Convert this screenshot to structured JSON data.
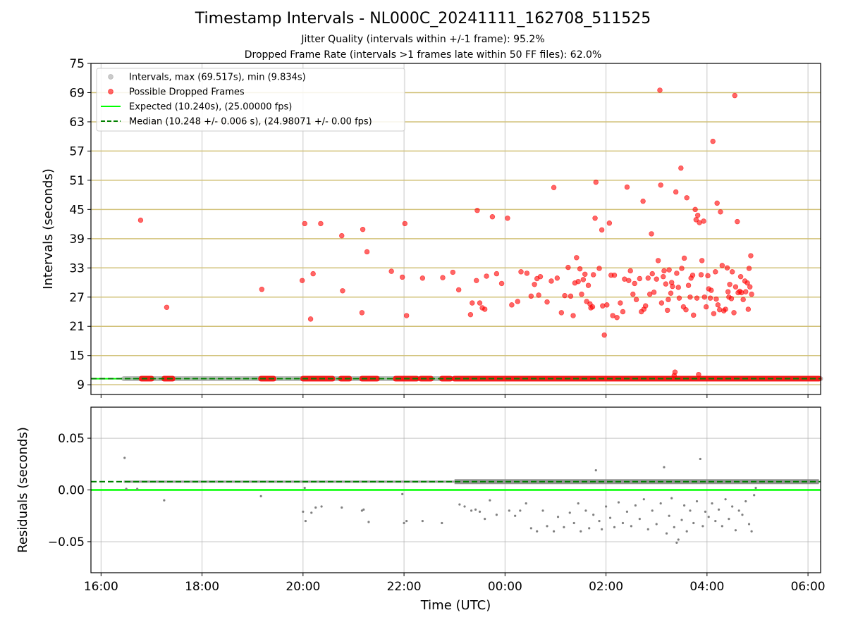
{
  "title": "Timestamp Intervals - NL000C_20241111_162708_511525",
  "subtitle_1": "Jitter Quality (intervals within +/-1 frame): 95.2%",
  "subtitle_2": "Dropped Frame Rate (intervals >1 frames late within 50 FF files): 62.0%",
  "colors": {
    "interval_points": "#a9a9a9",
    "dropped_points": "#ff0000",
    "expected_line": "#00ff00",
    "median_line": "#008000",
    "residual_points": "#808080",
    "horizontal_ref_lines": "#d2c27a",
    "grid": "#b0b0b0"
  },
  "chart_data": [
    {
      "type": "scatter",
      "ylabel": "Intervals (seconds)",
      "ylim": [
        7,
        75
      ],
      "xlim": [
        "15:48",
        "06:15"
      ],
      "yticks": [
        "9",
        "15",
        "21",
        "27",
        "33",
        "39",
        "45",
        "51",
        "57",
        "63",
        "69",
        "75"
      ],
      "grid": "vertical",
      "horizontal_reference_lines": [
        9,
        15,
        21,
        27,
        33,
        39,
        45,
        51,
        57,
        63,
        69
      ],
      "legend_position": "top-left",
      "legend": [
        {
          "label": "Intervals, max (69.517s), min (9.834s)",
          "kind": "marker",
          "color": "#a9a9a9"
        },
        {
          "label": "Possible Dropped Frames",
          "kind": "marker",
          "color": "#ff0000"
        },
        {
          "label": "Expected (10.240s), (25.00000 fps)",
          "kind": "line",
          "color": "#00ff00"
        },
        {
          "label": "Median (10.248 +/- 0.006 s), (24.98071 +/- 0.00 fps)",
          "kind": "dashed",
          "color": "#008000"
        }
      ],
      "expected": 10.24,
      "median": 10.248,
      "intervals_baseline": {
        "y": 10.248,
        "x_range": [
          "16:27",
          "06:15"
        ]
      },
      "dropped_baseline_segments": [
        [
          "16:48",
          "17:00"
        ],
        [
          "17:15",
          "17:25"
        ],
        [
          "19:10",
          "19:25"
        ],
        [
          "20:00",
          "20:35"
        ],
        [
          "20:45",
          "20:55"
        ],
        [
          "21:10",
          "21:28"
        ],
        [
          "21:50",
          "22:15"
        ],
        [
          "22:20",
          "22:32"
        ],
        [
          "22:45",
          "22:55"
        ],
        [
          "23:00",
          "06:13"
        ]
      ],
      "dropped_frames": [
        [
          "16:47",
          42.8
        ],
        [
          "17:18",
          24.9
        ],
        [
          "19:11",
          28.6
        ],
        [
          "19:59",
          30.4
        ],
        [
          "20:02",
          42.1
        ],
        [
          "20:09",
          22.5
        ],
        [
          "20:12",
          31.8
        ],
        [
          "20:21",
          42.1
        ],
        [
          "20:46",
          39.6
        ],
        [
          "20:47",
          28.3
        ],
        [
          "21:10",
          23.8
        ],
        [
          "21:11",
          40.9
        ],
        [
          "21:16",
          36.3
        ],
        [
          "21:45",
          32.3
        ],
        [
          "21:58",
          31.1
        ],
        [
          "22:01",
          42.1
        ],
        [
          "22:03",
          23.2
        ],
        [
          "22:22",
          30.9
        ],
        [
          "22:46",
          31.0
        ],
        [
          "22:58",
          32.1
        ],
        [
          "23:05",
          28.5
        ],
        [
          "23:19",
          23.4
        ],
        [
          "23:21",
          25.8
        ],
        [
          "23:26",
          30.4
        ],
        [
          "23:27",
          44.8
        ],
        [
          "23:30",
          25.8
        ],
        [
          "23:33",
          24.8
        ],
        [
          "23:36",
          24.5
        ],
        [
          "23:38",
          31.3
        ],
        [
          "23:45",
          43.5
        ],
        [
          "23:50",
          31.8
        ],
        [
          "23:56",
          29.8
        ],
        [
          "00:03",
          43.2
        ],
        [
          "00:08",
          25.4
        ],
        [
          "00:15",
          26.1
        ],
        [
          "00:19",
          32.2
        ],
        [
          "00:26",
          31.9
        ],
        [
          "00:31",
          27.2
        ],
        [
          "00:35",
          29.6
        ],
        [
          "00:38",
          30.8
        ],
        [
          "00:40",
          27.4
        ],
        [
          "00:42",
          31.2
        ],
        [
          "00:50",
          26.0
        ],
        [
          "00:55",
          30.3
        ],
        [
          "00:58",
          49.5
        ],
        [
          "01:02",
          30.9
        ],
        [
          "01:07",
          23.8
        ],
        [
          "01:11",
          27.3
        ],
        [
          "01:15",
          33.1
        ],
        [
          "01:18",
          27.2
        ],
        [
          "01:21",
          23.2
        ],
        [
          "01:23",
          29.9
        ],
        [
          "01:25",
          35.1
        ],
        [
          "01:27",
          30.2
        ],
        [
          "01:29",
          32.8
        ],
        [
          "01:31",
          27.6
        ],
        [
          "01:33",
          30.6
        ],
        [
          "01:35",
          31.7
        ],
        [
          "01:37",
          26.1
        ],
        [
          "01:39",
          29.4
        ],
        [
          "01:41",
          25.6
        ],
        [
          "01:42",
          24.8
        ],
        [
          "01:44",
          25.0
        ],
        [
          "01:45",
          31.6
        ],
        [
          "01:47",
          43.2
        ],
        [
          "01:48",
          50.6
        ],
        [
          "01:52",
          32.9
        ],
        [
          "01:55",
          40.8
        ],
        [
          "01:56",
          25.2
        ],
        [
          "01:58",
          19.2
        ],
        [
          "02:01",
          25.4
        ],
        [
          "02:04",
          42.2
        ],
        [
          "02:06",
          31.5
        ],
        [
          "02:08",
          23.2
        ],
        [
          "02:10",
          31.5
        ],
        [
          "02:13",
          22.8
        ],
        [
          "02:17",
          25.8
        ],
        [
          "02:20",
          24.0
        ],
        [
          "02:22",
          30.7
        ],
        [
          "02:25",
          49.6
        ],
        [
          "02:27",
          30.4
        ],
        [
          "02:29",
          32.4
        ],
        [
          "02:32",
          27.6
        ],
        [
          "02:34",
          29.8
        ],
        [
          "02:36",
          26.5
        ],
        [
          "02:40",
          30.8
        ],
        [
          "02:42",
          24.0
        ],
        [
          "02:44",
          46.7
        ],
        [
          "02:45",
          24.5
        ],
        [
          "02:47",
          25.2
        ],
        [
          "02:50",
          30.9
        ],
        [
          "02:52",
          27.6
        ],
        [
          "02:54",
          40.0
        ],
        [
          "02:55",
          31.8
        ],
        [
          "02:57",
          28.0
        ],
        [
          "03:00",
          30.7
        ],
        [
          "03:02",
          34.5
        ],
        [
          "03:04",
          69.5
        ],
        [
          "03:05",
          50.0
        ],
        [
          "03:06",
          25.8
        ],
        [
          "03:08",
          31.2
        ],
        [
          "03:09",
          32.4
        ],
        [
          "03:11",
          29.7
        ],
        [
          "03:13",
          24.3
        ],
        [
          "03:14",
          26.5
        ],
        [
          "03:15",
          32.6
        ],
        [
          "03:17",
          27.8
        ],
        [
          "03:18",
          30.0
        ],
        [
          "03:19",
          29.2
        ],
        [
          "03:21",
          10.9
        ],
        [
          "03:22",
          11.6
        ],
        [
          "03:23",
          48.6
        ],
        [
          "03:24",
          31.9
        ],
        [
          "03:26",
          29.0
        ],
        [
          "03:27",
          26.8
        ],
        [
          "03:29",
          53.5
        ],
        [
          "03:30",
          32.9
        ],
        [
          "03:32",
          25.0
        ],
        [
          "03:33",
          35.0
        ],
        [
          "03:35",
          24.4
        ],
        [
          "03:36",
          47.4
        ],
        [
          "03:38",
          29.4
        ],
        [
          "03:40",
          27.0
        ],
        [
          "03:41",
          30.9
        ],
        [
          "03:43",
          31.5
        ],
        [
          "03:44",
          23.3
        ],
        [
          "03:46",
          45.0
        ],
        [
          "03:47",
          42.9
        ],
        [
          "03:48",
          26.8
        ],
        [
          "03:49",
          43.8
        ],
        [
          "03:50",
          11.1
        ],
        [
          "03:51",
          42.3
        ],
        [
          "03:53",
          31.6
        ],
        [
          "03:54",
          34.5
        ],
        [
          "03:56",
          42.6
        ],
        [
          "03:57",
          27.0
        ],
        [
          "03:59",
          25.0
        ],
        [
          "04:01",
          31.4
        ],
        [
          "04:02",
          28.7
        ],
        [
          "04:04",
          26.8
        ],
        [
          "04:05",
          28.4
        ],
        [
          "04:07",
          59.0
        ],
        [
          "04:08",
          23.6
        ],
        [
          "04:10",
          32.2
        ],
        [
          "04:11",
          26.6
        ],
        [
          "04:12",
          46.3
        ],
        [
          "04:13",
          25.4
        ],
        [
          "04:15",
          24.4
        ],
        [
          "04:16",
          44.5
        ],
        [
          "04:18",
          33.5
        ],
        [
          "04:20",
          24.2
        ],
        [
          "04:22",
          24.5
        ],
        [
          "04:24",
          33.0
        ],
        [
          "04:25",
          28.1
        ],
        [
          "04:26",
          27.0
        ],
        [
          "04:27",
          29.6
        ],
        [
          "04:29",
          26.7
        ],
        [
          "04:30",
          32.2
        ],
        [
          "04:32",
          23.8
        ],
        [
          "04:33",
          68.4
        ],
        [
          "04:34",
          29.1
        ],
        [
          "04:36",
          42.5
        ],
        [
          "04:37",
          27.9
        ],
        [
          "04:39",
          28.2
        ],
        [
          "04:40",
          31.2
        ],
        [
          "04:41",
          27.9
        ],
        [
          "04:43",
          26.5
        ],
        [
          "04:45",
          30.3
        ],
        [
          "04:46",
          28.1
        ],
        [
          "04:48",
          29.9
        ],
        [
          "04:49",
          24.5
        ],
        [
          "04:50",
          32.9
        ],
        [
          "04:51",
          29.1
        ],
        [
          "04:52",
          35.5
        ],
        [
          "04:53",
          27.6
        ]
      ]
    },
    {
      "type": "scatter",
      "ylabel": "Residuals (seconds)",
      "xlabel": "Time (UTC)",
      "ylim": [
        -0.08,
        0.08
      ],
      "yticks": [
        "0.05",
        "0.00",
        "−0.05"
      ],
      "ytick_values": [
        0.05,
        0.0,
        -0.05
      ],
      "xticks": [
        "16:00",
        "18:00",
        "20:00",
        "22:00",
        "00:00",
        "02:00",
        "04:00",
        "06:00"
      ],
      "grid": "both",
      "expected_residual": 0.0,
      "median_residual": 0.008,
      "residual_band": {
        "y": 0.008,
        "x_range_sparse": [
          "16:27",
          "23:00"
        ],
        "x_range_dense": [
          "23:00",
          "06:13"
        ]
      },
      "outliers": [
        [
          "16:28",
          0.031
        ],
        [
          "16:30",
          0.001
        ],
        [
          "16:43",
          0.001
        ],
        [
          "17:15",
          -0.01
        ],
        [
          "19:10",
          -0.006
        ],
        [
          "20:00",
          -0.021
        ],
        [
          "20:03",
          -0.03
        ],
        [
          "20:02",
          0.002
        ],
        [
          "20:10",
          -0.022
        ],
        [
          "20:15",
          -0.017
        ],
        [
          "20:22",
          -0.016
        ],
        [
          "20:46",
          -0.017
        ],
        [
          "21:10",
          -0.02
        ],
        [
          "21:12",
          -0.019
        ],
        [
          "21:18",
          -0.031
        ],
        [
          "21:58",
          -0.004
        ],
        [
          "22:00",
          -0.032
        ],
        [
          "22:03",
          -0.03
        ],
        [
          "22:22",
          -0.03
        ],
        [
          "22:45",
          -0.032
        ],
        [
          "23:06",
          -0.014
        ],
        [
          "23:12",
          -0.016
        ],
        [
          "23:20",
          -0.02
        ],
        [
          "23:25",
          -0.019
        ],
        [
          "23:30",
          -0.021
        ],
        [
          "23:36",
          -0.028
        ],
        [
          "23:42",
          -0.01
        ],
        [
          "23:50",
          -0.024
        ],
        [
          "00:05",
          -0.02
        ],
        [
          "00:12",
          -0.025
        ],
        [
          "00:18",
          -0.02
        ],
        [
          "00:25",
          -0.013
        ],
        [
          "00:31",
          -0.037
        ],
        [
          "00:38",
          -0.04
        ],
        [
          "00:45",
          -0.02
        ],
        [
          "00:50",
          -0.035
        ],
        [
          "00:58",
          -0.04
        ],
        [
          "01:03",
          -0.026
        ],
        [
          "01:10",
          -0.036
        ],
        [
          "01:17",
          -0.022
        ],
        [
          "01:22",
          -0.032
        ],
        [
          "01:27",
          -0.013
        ],
        [
          "01:30",
          -0.04
        ],
        [
          "01:36",
          -0.02
        ],
        [
          "01:40",
          -0.037
        ],
        [
          "01:45",
          -0.024
        ],
        [
          "01:48",
          0.019
        ],
        [
          "01:52",
          -0.03
        ],
        [
          "01:55",
          -0.038
        ],
        [
          "02:00",
          -0.016
        ],
        [
          "02:05",
          -0.027
        ],
        [
          "02:10",
          -0.036
        ],
        [
          "02:15",
          -0.012
        ],
        [
          "02:20",
          -0.032
        ],
        [
          "02:25",
          -0.021
        ],
        [
          "02:30",
          -0.035
        ],
        [
          "02:35",
          -0.015
        ],
        [
          "02:40",
          -0.028
        ],
        [
          "02:45",
          -0.009
        ],
        [
          "02:50",
          -0.038
        ],
        [
          "02:55",
          -0.02
        ],
        [
          "03:00",
          -0.033
        ],
        [
          "03:05",
          -0.013
        ],
        [
          "03:09",
          0.022
        ],
        [
          "03:12",
          -0.042
        ],
        [
          "03:15",
          -0.025
        ],
        [
          "03:18",
          -0.008
        ],
        [
          "03:21",
          -0.036
        ],
        [
          "03:24",
          -0.051
        ],
        [
          "03:26",
          -0.048
        ],
        [
          "03:30",
          -0.029
        ],
        [
          "03:33",
          -0.015
        ],
        [
          "03:36",
          -0.04
        ],
        [
          "03:40",
          -0.02
        ],
        [
          "03:44",
          -0.032
        ],
        [
          "03:48",
          -0.011
        ],
        [
          "03:52",
          0.03
        ],
        [
          "03:55",
          -0.035
        ],
        [
          "03:58",
          -0.021
        ],
        [
          "04:02",
          -0.026
        ],
        [
          "04:06",
          -0.013
        ],
        [
          "04:10",
          -0.03
        ],
        [
          "04:14",
          -0.019
        ],
        [
          "04:18",
          -0.035
        ],
        [
          "04:22",
          -0.009
        ],
        [
          "04:26",
          -0.028
        ],
        [
          "04:30",
          -0.016
        ],
        [
          "04:34",
          -0.039
        ],
        [
          "04:38",
          -0.02
        ],
        [
          "04:42",
          -0.024
        ],
        [
          "04:46",
          -0.011
        ],
        [
          "04:50",
          -0.033
        ],
        [
          "04:53",
          -0.04
        ],
        [
          "04:56",
          -0.005
        ],
        [
          "04:58",
          0.002
        ]
      ]
    }
  ]
}
